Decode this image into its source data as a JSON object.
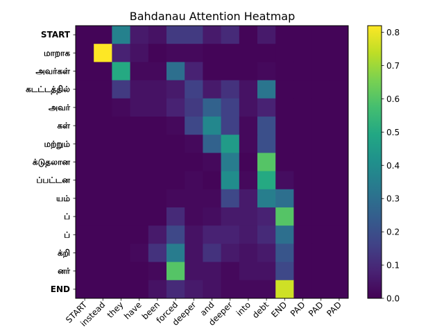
{
  "chart_data": {
    "type": "heatmap",
    "title": "Bahdanau Attention Heatmap",
    "xlabel": "",
    "ylabel": "",
    "x_labels": [
      "START",
      "instead",
      "they",
      "have",
      "been",
      "forced",
      "deeper",
      "and",
      "deeper",
      "into",
      "debt",
      "END",
      "PAD",
      "PAD",
      "PAD"
    ],
    "y_labels": [
      "START",
      "மாறாக",
      "அவர்கள்",
      "கடட்டத்தில்",
      "அவர்",
      "கள்",
      "மற்றும்",
      "க்டுதலான",
      "ப்பட்டன",
      "யம்",
      "ப்",
      "ப்",
      "க்றி",
      "னர்",
      "END"
    ],
    "colormap": "viridis",
    "value_range": [
      0.0,
      0.82
    ],
    "colorbar_ticks": [
      "0.0",
      "0.1",
      "0.2",
      "0.3",
      "0.4",
      "0.5",
      "0.6",
      "0.7",
      "0.8"
    ],
    "values": [
      [
        0.01,
        0.01,
        0.36,
        0.06,
        0.04,
        0.14,
        0.14,
        0.06,
        0.1,
        0.01,
        0.06,
        0.01,
        0.01,
        0.01,
        0.01
      ],
      [
        0.01,
        0.82,
        0.08,
        0.04,
        0.01,
        0.02,
        0.02,
        0.01,
        0.01,
        0.01,
        0.01,
        0.01,
        0.01,
        0.01,
        0.01
      ],
      [
        0.01,
        0.01,
        0.5,
        0.02,
        0.02,
        0.3,
        0.08,
        0.01,
        0.01,
        0.01,
        0.02,
        0.01,
        0.01,
        0.01,
        0.01
      ],
      [
        0.01,
        0.01,
        0.14,
        0.04,
        0.04,
        0.06,
        0.16,
        0.06,
        0.12,
        0.04,
        0.32,
        0.01,
        0.01,
        0.01,
        0.01
      ],
      [
        0.01,
        0.01,
        0.02,
        0.04,
        0.04,
        0.08,
        0.14,
        0.26,
        0.16,
        0.04,
        0.08,
        0.01,
        0.01,
        0.01,
        0.01
      ],
      [
        0.01,
        0.01,
        0.01,
        0.01,
        0.01,
        0.02,
        0.18,
        0.38,
        0.16,
        0.02,
        0.2,
        0.01,
        0.01,
        0.01,
        0.01
      ],
      [
        0.01,
        0.01,
        0.01,
        0.01,
        0.01,
        0.01,
        0.02,
        0.26,
        0.45,
        0.02,
        0.2,
        0.01,
        0.01,
        0.01,
        0.01
      ],
      [
        0.01,
        0.01,
        0.01,
        0.01,
        0.01,
        0.01,
        0.01,
        0.02,
        0.34,
        0.01,
        0.6,
        0.01,
        0.01,
        0.01,
        0.01
      ],
      [
        0.01,
        0.01,
        0.01,
        0.01,
        0.01,
        0.01,
        0.02,
        0.01,
        0.4,
        0.02,
        0.5,
        0.03,
        0.01,
        0.01,
        0.01
      ],
      [
        0.01,
        0.01,
        0.01,
        0.01,
        0.01,
        0.02,
        0.02,
        0.02,
        0.18,
        0.06,
        0.35,
        0.3,
        0.01,
        0.01,
        0.01
      ],
      [
        0.01,
        0.01,
        0.01,
        0.01,
        0.01,
        0.1,
        0.02,
        0.03,
        0.06,
        0.06,
        0.08,
        0.6,
        0.01,
        0.01,
        0.01
      ],
      [
        0.01,
        0.01,
        0.01,
        0.01,
        0.06,
        0.18,
        0.04,
        0.08,
        0.08,
        0.06,
        0.1,
        0.3,
        0.01,
        0.01,
        0.01
      ],
      [
        0.01,
        0.01,
        0.01,
        0.02,
        0.12,
        0.34,
        0.04,
        0.12,
        0.06,
        0.04,
        0.06,
        0.22,
        0.01,
        0.01,
        0.01
      ],
      [
        0.01,
        0.01,
        0.01,
        0.01,
        0.02,
        0.6,
        0.04,
        0.04,
        0.02,
        0.04,
        0.04,
        0.18,
        0.01,
        0.01,
        0.01
      ],
      [
        0.01,
        0.01,
        0.01,
        0.01,
        0.04,
        0.1,
        0.06,
        0.04,
        0.02,
        0.02,
        0.02,
        0.76,
        0.01,
        0.01,
        0.01
      ]
    ]
  }
}
